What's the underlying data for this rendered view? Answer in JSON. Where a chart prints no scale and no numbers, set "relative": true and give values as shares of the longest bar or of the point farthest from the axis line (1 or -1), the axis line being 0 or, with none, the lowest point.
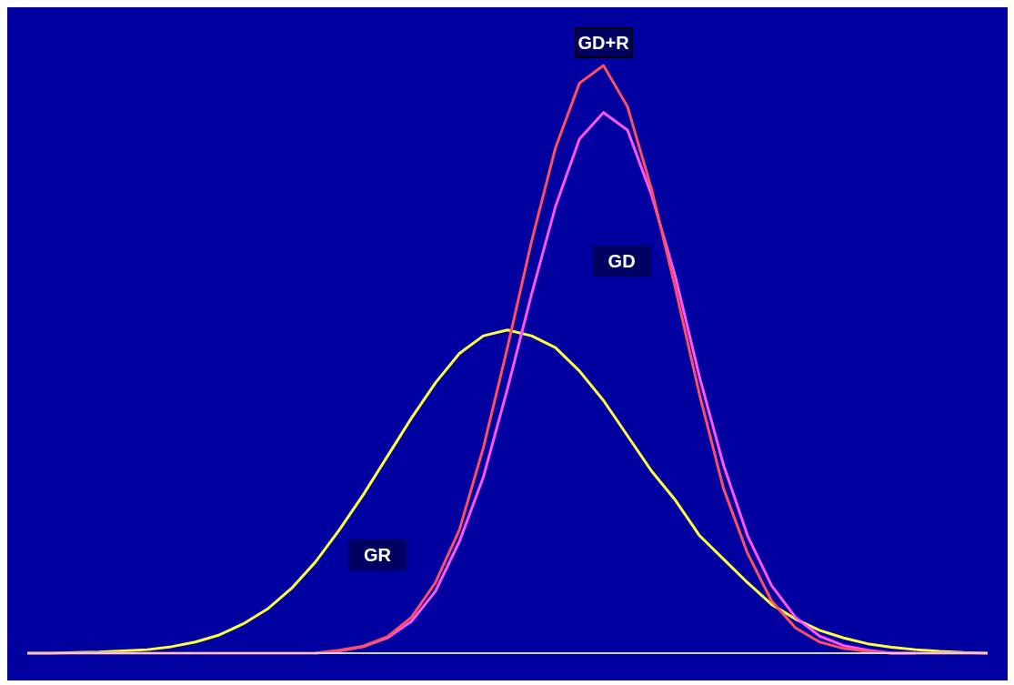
{
  "chart_data": {
    "type": "line",
    "relative": true,
    "categories": [
      null,
      null,
      null,
      null,
      null,
      null,
      null,
      null,
      null,
      null,
      null,
      null,
      null,
      null,
      null,
      null,
      null,
      null,
      null,
      null,
      null,
      null,
      null,
      null,
      null,
      null,
      null,
      null,
      null,
      null,
      null,
      null,
      null,
      null,
      null,
      null,
      null,
      null,
      null,
      null,
      null
    ],
    "series": [
      {
        "name": "GR",
        "color": "#ffff40",
        "values": [
          0,
          0,
          0.001,
          0.002,
          0.004,
          0.006,
          0.011,
          0.019,
          0.031,
          0.05,
          0.075,
          0.11,
          0.155,
          0.21,
          0.27,
          0.335,
          0.4,
          0.46,
          0.51,
          0.54,
          0.55,
          0.54,
          0.52,
          0.48,
          0.43,
          0.37,
          0.31,
          0.26,
          0.2,
          0.16,
          0.12,
          0.083,
          0.058,
          0.039,
          0.026,
          0.016,
          0.01,
          0.006,
          0.003,
          0.001,
          0
        ]
      },
      {
        "name": "GD",
        "color": "#ff55ff",
        "values": [
          null,
          null,
          null,
          null,
          null,
          null,
          null,
          null,
          null,
          null,
          null,
          null,
          0,
          0.004,
          0.011,
          0.026,
          0.054,
          0.105,
          0.19,
          0.3,
          0.45,
          0.61,
          0.76,
          0.875,
          0.92,
          0.89,
          0.78,
          0.64,
          0.47,
          0.32,
          0.2,
          0.115,
          0.061,
          0.029,
          0.013,
          0.005,
          0,
          0,
          null,
          null,
          null
        ]
      },
      {
        "name": "GD+R",
        "color": "#ff5060",
        "values": [
          0,
          0,
          0,
          0,
          0,
          0,
          0,
          0,
          0,
          0,
          0,
          0,
          0,
          0.005,
          0.012,
          0.028,
          0.061,
          0.12,
          0.21,
          0.35,
          0.52,
          0.7,
          0.86,
          0.97,
          1,
          0.93,
          0.79,
          0.62,
          0.44,
          0.28,
          0.17,
          0.089,
          0.043,
          0.019,
          0.008,
          0.003,
          0,
          0,
          0,
          0,
          0
        ]
      }
    ]
  }
}
